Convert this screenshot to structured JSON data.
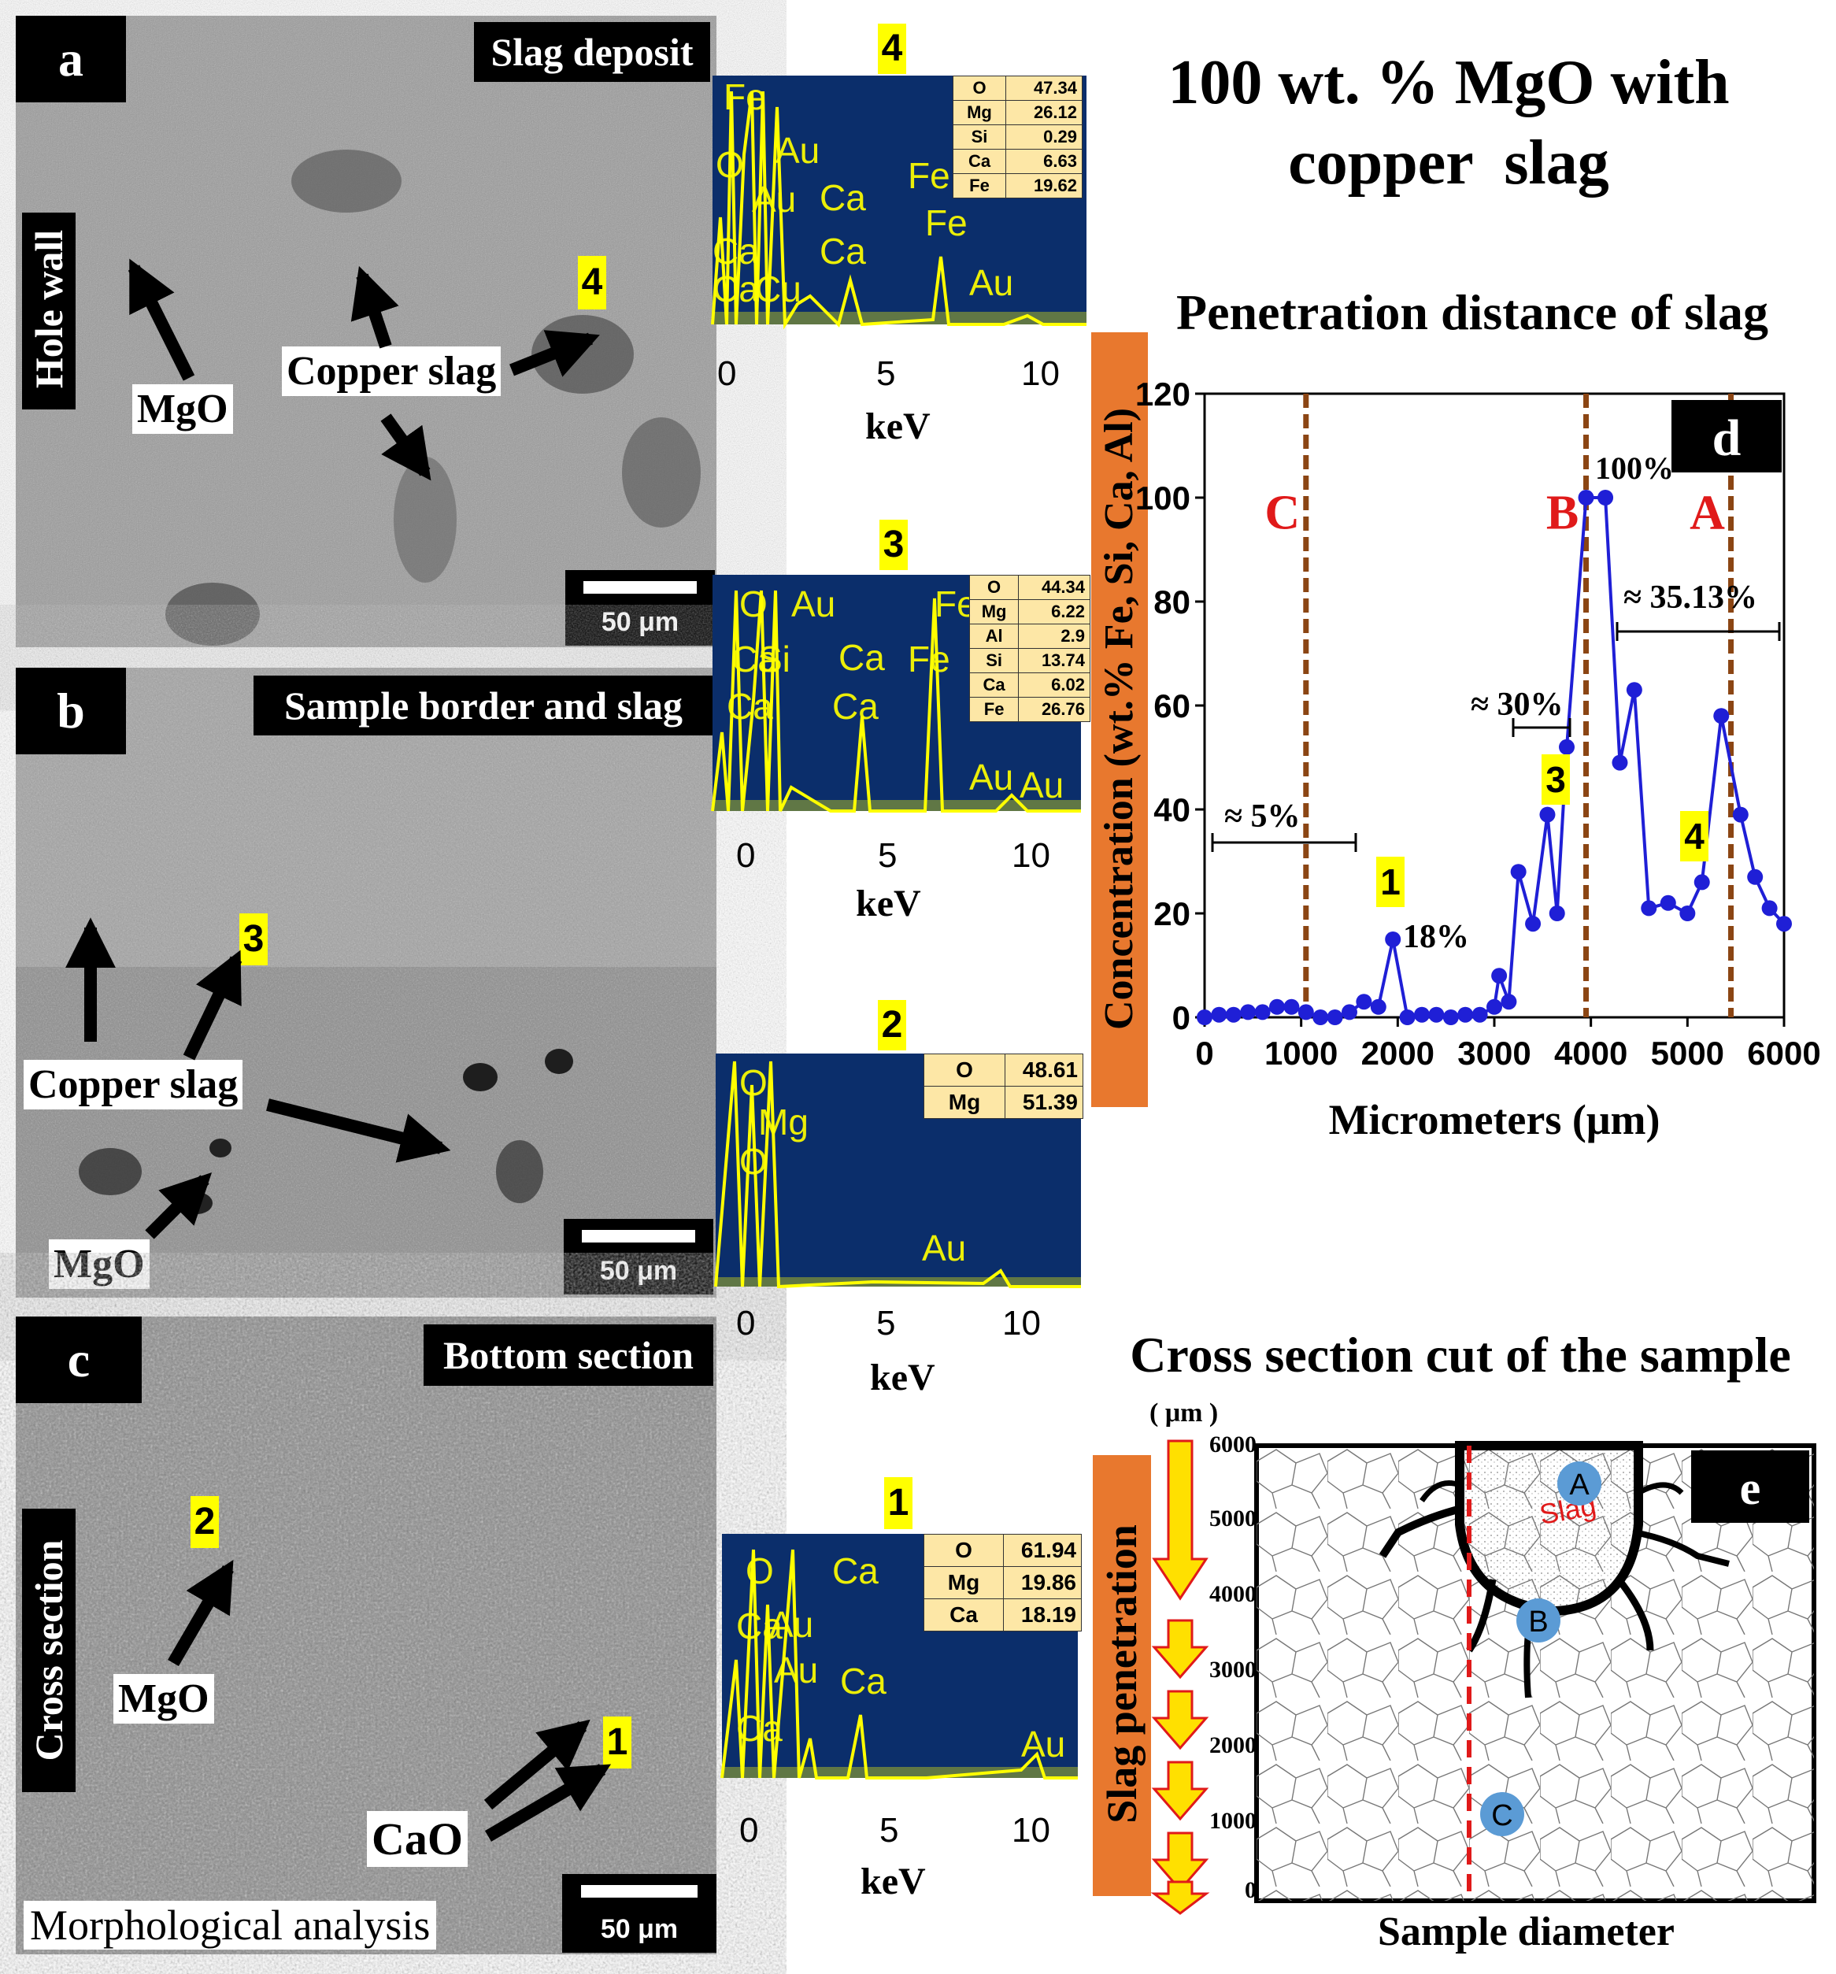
{
  "figure_title": {
    "line1": "100 wt. % MgO with",
    "line2": "copper  slag"
  },
  "panels": {
    "a": {
      "letter": "a",
      "header": "Slag deposit",
      "side_label": "Hole wall",
      "labels": {
        "mgo": "MgO",
        "copper_slag": "Copper slag"
      },
      "marker": "4",
      "scale": "50 μm"
    },
    "b": {
      "letter": "b",
      "header": "Sample border and slag",
      "labels": {
        "mgo": "MgO",
        "copper_slag": "Copper slag"
      },
      "marker": "3",
      "scale": "50 μm"
    },
    "c": {
      "letter": "c",
      "header": "Bottom section",
      "side_label": "Cross section",
      "footer": "Morphological analysis",
      "labels": {
        "mgo": "MgO",
        "cao": "CaO"
      },
      "marker_2": "2",
      "marker_1": "1",
      "scale": "50 μm"
    }
  },
  "eds_spectra": [
    {
      "id": "4",
      "peaks": [
        "Fe",
        "O",
        "Au",
        "Au",
        "Ca",
        "Ca",
        "Ca",
        "Fe",
        "Fe",
        "Au",
        "Ca",
        "Cu"
      ],
      "composition": [
        {
          "el": "O",
          "val": "47.34"
        },
        {
          "el": "Mg",
          "val": "26.12"
        },
        {
          "el": "Si",
          "val": "0.29"
        },
        {
          "el": "Ca",
          "val": "6.63"
        },
        {
          "el": "Fe",
          "val": "19.62"
        }
      ],
      "x_ticks": [
        "0",
        "5",
        "10"
      ],
      "xlabel": "keV"
    },
    {
      "id": "3",
      "peaks": [
        "O",
        "Au",
        "Fe",
        "Ca",
        "Si",
        "Ca",
        "Fe",
        "Ca",
        "Ca",
        "Au",
        "Au"
      ],
      "composition": [
        {
          "el": "O",
          "val": "44.34"
        },
        {
          "el": "Mg",
          "val": "6.22"
        },
        {
          "el": "Al",
          "val": "2.9"
        },
        {
          "el": "Si",
          "val": "13.74"
        },
        {
          "el": "Ca",
          "val": "6.02"
        },
        {
          "el": "Fe",
          "val": "26.76"
        }
      ],
      "x_ticks": [
        "0",
        "5",
        "10"
      ],
      "xlabel": "keV"
    },
    {
      "id": "2",
      "peaks": [
        "O",
        "Mg",
        "O",
        "Au"
      ],
      "composition": [
        {
          "el": "O",
          "val": "48.61"
        },
        {
          "el": "Mg",
          "val": "51.39"
        }
      ],
      "x_ticks": [
        "0",
        "5",
        "10"
      ],
      "xlabel": "keV"
    },
    {
      "id": "1",
      "peaks": [
        "O",
        "Ca",
        "Ca",
        "Au",
        "Au",
        "Ca",
        "Ca",
        "Au"
      ],
      "composition": [
        {
          "el": "O",
          "val": "61.94"
        },
        {
          "el": "Mg",
          "val": "19.86"
        },
        {
          "el": "Ca",
          "val": "18.19"
        }
      ],
      "x_ticks": [
        "0",
        "5",
        "10"
      ],
      "xlabel": "keV"
    }
  ],
  "chart_title": "Penetration distance of slag",
  "chart_data": {
    "type": "line",
    "panel_letter": "d",
    "xlabel": "Micrometers (μm)",
    "ylabel": "Concentration (wt.% Fe, Si, Ca, Al)",
    "xlim": [
      0,
      6000
    ],
    "ylim": [
      0,
      120
    ],
    "x_ticks": [
      "0",
      "1000",
      "2000",
      "3000",
      "4000",
      "5000",
      "6000"
    ],
    "y_ticks": [
      "0",
      "20",
      "40",
      "60",
      "80",
      "100",
      "120"
    ],
    "series": [
      {
        "color": "#1f1fd6",
        "x": [
          0,
          150,
          300,
          450,
          600,
          750,
          900,
          1050,
          1200,
          1350,
          1500,
          1650,
          1800,
          1950,
          2100,
          2250,
          2400,
          2550,
          2700,
          2850,
          3000,
          3050,
          3150,
          3250,
          3400,
          3550,
          3650,
          3750,
          3950,
          4150,
          4300,
          4450,
          4600,
          4800,
          5000,
          5150,
          5350,
          5550,
          5700,
          5850,
          6000
        ],
        "y": [
          0,
          0.5,
          0.5,
          1,
          1,
          2,
          2,
          1,
          0,
          0,
          1,
          3,
          2,
          15,
          0,
          0.5,
          0.5,
          0,
          0.5,
          0.5,
          2,
          8,
          3,
          28,
          18,
          39,
          20,
          52,
          100,
          100,
          49,
          63,
          21,
          22,
          20,
          26,
          58,
          39,
          27,
          21,
          18
        ]
      }
    ],
    "vlines": [
      {
        "label": "C",
        "x": 1050
      },
      {
        "label": "B",
        "x": 3950
      },
      {
        "label": "A",
        "x": 5450
      }
    ],
    "annotations": [
      "≈ 5%",
      "18%",
      "≈ 30%",
      "100%",
      "≈ 35.13%"
    ],
    "point_markers": [
      "1",
      "3",
      "4"
    ]
  },
  "cross_section": {
    "title": "Cross section cut of the sample",
    "letter": "e",
    "unit": "( μm )",
    "y_ticks": [
      "6000",
      "5000",
      "4000",
      "3000",
      "2000",
      "1000",
      "0"
    ],
    "side_label": "Slag penetration",
    "xlabel": "Sample diameter",
    "slag_label": "Slag",
    "points": [
      "A",
      "B",
      "C"
    ]
  },
  "colors": {
    "sem_gray": "#8c8c8c",
    "eds_bg": "#0b2e6b",
    "eds_peak": "#ffff00",
    "table_bg": "#fde7a6",
    "line": "#1f1fd6",
    "vline": "#8b4513",
    "marker_red": "#e01a1a",
    "orange": "#e8782e"
  }
}
